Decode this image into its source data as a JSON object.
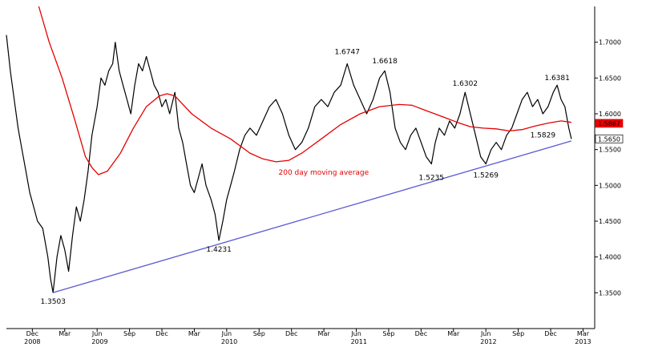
{
  "chart_data": {
    "type": "line",
    "title": "",
    "xlabel": "",
    "ylabel": "",
    "ylim": [
      1.3,
      1.75
    ],
    "y_ticks": [
      "1.3500",
      "1.4000",
      "1.4500",
      "1.5000",
      "1.5500",
      "1.6000",
      "1.6500",
      "1.7000"
    ],
    "x_ticks": [
      {
        "label": "Dec",
        "t": 2008.92
      },
      {
        "label": "Mar",
        "t": 2009.17
      },
      {
        "label": "Jun",
        "t": 2009.42
      },
      {
        "label": "Sep",
        "t": 2009.67
      },
      {
        "label": "Dec",
        "t": 2009.92
      },
      {
        "label": "Mar",
        "t": 2010.17
      },
      {
        "label": "Jun",
        "t": 2010.42
      },
      {
        "label": "Sep",
        "t": 2010.67
      },
      {
        "label": "Dec",
        "t": 2010.92
      },
      {
        "label": "Mar",
        "t": 2011.17
      },
      {
        "label": "Jun",
        "t": 2011.42
      },
      {
        "label": "Sep",
        "t": 2011.67
      },
      {
        "label": "Dec",
        "t": 2011.92
      },
      {
        "label": "Mar",
        "t": 2012.17
      },
      {
        "label": "Jun",
        "t": 2012.42
      },
      {
        "label": "Sep",
        "t": 2012.67
      },
      {
        "label": "Dec",
        "t": 2012.92
      },
      {
        "label": "Mar",
        "t": 2013.17
      }
    ],
    "year_labels": [
      {
        "label": "2008",
        "t": 2008.92
      },
      {
        "label": "2009",
        "t": 2009.44
      },
      {
        "label": "2010",
        "t": 2010.44
      },
      {
        "label": "2011",
        "t": 2011.44
      },
      {
        "label": "2012",
        "t": 2012.44
      },
      {
        "label": "2013",
        "t": 2013.17
      }
    ],
    "series": [
      {
        "color": "#000000",
        "points": [
          [
            2008.72,
            1.71
          ],
          [
            2008.75,
            1.66
          ],
          [
            2008.78,
            1.62
          ],
          [
            2008.81,
            1.58
          ],
          [
            2008.84,
            1.55
          ],
          [
            2008.87,
            1.52
          ],
          [
            2008.9,
            1.49
          ],
          [
            2008.93,
            1.47
          ],
          [
            2008.96,
            1.45
          ],
          [
            2009.0,
            1.44
          ],
          [
            2009.04,
            1.4
          ],
          [
            2009.06,
            1.37
          ],
          [
            2009.08,
            1.3503
          ],
          [
            2009.11,
            1.4
          ],
          [
            2009.14,
            1.43
          ],
          [
            2009.17,
            1.41
          ],
          [
            2009.2,
            1.38
          ],
          [
            2009.23,
            1.43
          ],
          [
            2009.26,
            1.47
          ],
          [
            2009.29,
            1.45
          ],
          [
            2009.32,
            1.48
          ],
          [
            2009.35,
            1.52
          ],
          [
            2009.38,
            1.57
          ],
          [
            2009.42,
            1.61
          ],
          [
            2009.45,
            1.65
          ],
          [
            2009.48,
            1.64
          ],
          [
            2009.51,
            1.66
          ],
          [
            2009.54,
            1.67
          ],
          [
            2009.56,
            1.7
          ],
          [
            2009.59,
            1.66
          ],
          [
            2009.62,
            1.64
          ],
          [
            2009.65,
            1.62
          ],
          [
            2009.68,
            1.6
          ],
          [
            2009.71,
            1.64
          ],
          [
            2009.74,
            1.67
          ],
          [
            2009.77,
            1.66
          ],
          [
            2009.8,
            1.68
          ],
          [
            2009.83,
            1.66
          ],
          [
            2009.86,
            1.64
          ],
          [
            2009.89,
            1.63
          ],
          [
            2009.92,
            1.61
          ],
          [
            2009.95,
            1.62
          ],
          [
            2009.98,
            1.6
          ],
          [
            2010.02,
            1.63
          ],
          [
            2010.05,
            1.58
          ],
          [
            2010.08,
            1.56
          ],
          [
            2010.11,
            1.53
          ],
          [
            2010.14,
            1.5
          ],
          [
            2010.17,
            1.49
          ],
          [
            2010.2,
            1.51
          ],
          [
            2010.23,
            1.53
          ],
          [
            2010.26,
            1.5
          ],
          [
            2010.3,
            1.48
          ],
          [
            2010.33,
            1.46
          ],
          [
            2010.36,
            1.4231
          ],
          [
            2010.39,
            1.45
          ],
          [
            2010.42,
            1.48
          ],
          [
            2010.45,
            1.5
          ],
          [
            2010.48,
            1.52
          ],
          [
            2010.52,
            1.55
          ],
          [
            2010.56,
            1.57
          ],
          [
            2010.6,
            1.58
          ],
          [
            2010.65,
            1.57
          ],
          [
            2010.7,
            1.59
          ],
          [
            2010.75,
            1.61
          ],
          [
            2010.8,
            1.62
          ],
          [
            2010.85,
            1.6
          ],
          [
            2010.9,
            1.57
          ],
          [
            2010.95,
            1.55
          ],
          [
            2011.0,
            1.56
          ],
          [
            2011.05,
            1.58
          ],
          [
            2011.1,
            1.61
          ],
          [
            2011.15,
            1.62
          ],
          [
            2011.2,
            1.61
          ],
          [
            2011.25,
            1.63
          ],
          [
            2011.3,
            1.64
          ],
          [
            2011.35,
            1.67
          ],
          [
            2011.4,
            1.64
          ],
          [
            2011.45,
            1.62
          ],
          [
            2011.5,
            1.6
          ],
          [
            2011.55,
            1.62
          ],
          [
            2011.6,
            1.65
          ],
          [
            2011.64,
            1.66
          ],
          [
            2011.68,
            1.63
          ],
          [
            2011.72,
            1.58
          ],
          [
            2011.76,
            1.56
          ],
          [
            2011.8,
            1.55
          ],
          [
            2011.84,
            1.57
          ],
          [
            2011.88,
            1.58
          ],
          [
            2011.92,
            1.56
          ],
          [
            2011.96,
            1.54
          ],
          [
            2012.0,
            1.53
          ],
          [
            2012.03,
            1.56
          ],
          [
            2012.06,
            1.58
          ],
          [
            2012.1,
            1.57
          ],
          [
            2012.14,
            1.59
          ],
          [
            2012.18,
            1.58
          ],
          [
            2012.22,
            1.6
          ],
          [
            2012.26,
            1.63
          ],
          [
            2012.3,
            1.6
          ],
          [
            2012.34,
            1.57
          ],
          [
            2012.38,
            1.54
          ],
          [
            2012.42,
            1.53
          ],
          [
            2012.46,
            1.55
          ],
          [
            2012.5,
            1.56
          ],
          [
            2012.54,
            1.55
          ],
          [
            2012.58,
            1.57
          ],
          [
            2012.62,
            1.58
          ],
          [
            2012.66,
            1.6
          ],
          [
            2012.7,
            1.62
          ],
          [
            2012.74,
            1.63
          ],
          [
            2012.78,
            1.61
          ],
          [
            2012.82,
            1.62
          ],
          [
            2012.86,
            1.6
          ],
          [
            2012.9,
            1.61
          ],
          [
            2012.94,
            1.63
          ],
          [
            2012.97,
            1.64
          ],
          [
            2013.0,
            1.62
          ],
          [
            2013.03,
            1.61
          ],
          [
            2013.06,
            1.58
          ],
          [
            2013.08,
            1.565
          ]
        ]
      },
      {
        "name": "200 day moving average",
        "color": "#e60000",
        "points": [
          [
            2008.97,
            1.75
          ],
          [
            2009.05,
            1.7
          ],
          [
            2009.15,
            1.65
          ],
          [
            2009.25,
            1.59
          ],
          [
            2009.33,
            1.54
          ],
          [
            2009.38,
            1.525
          ],
          [
            2009.43,
            1.515
          ],
          [
            2009.5,
            1.52
          ],
          [
            2009.6,
            1.545
          ],
          [
            2009.7,
            1.58
          ],
          [
            2009.8,
            1.61
          ],
          [
            2009.9,
            1.625
          ],
          [
            2009.96,
            1.628
          ],
          [
            2010.02,
            1.625
          ],
          [
            2010.15,
            1.6
          ],
          [
            2010.3,
            1.58
          ],
          [
            2010.45,
            1.565
          ],
          [
            2010.6,
            1.545
          ],
          [
            2010.7,
            1.537
          ],
          [
            2010.8,
            1.533
          ],
          [
            2010.9,
            1.535
          ],
          [
            2011.0,
            1.545
          ],
          [
            2011.15,
            1.565
          ],
          [
            2011.3,
            1.585
          ],
          [
            2011.45,
            1.6
          ],
          [
            2011.6,
            1.61
          ],
          [
            2011.75,
            1.613
          ],
          [
            2011.85,
            1.612
          ],
          [
            2011.95,
            1.605
          ],
          [
            2012.1,
            1.595
          ],
          [
            2012.2,
            1.588
          ],
          [
            2012.3,
            1.582
          ],
          [
            2012.4,
            1.58
          ],
          [
            2012.5,
            1.579
          ],
          [
            2012.6,
            1.576
          ],
          [
            2012.7,
            1.578
          ],
          [
            2012.8,
            1.583
          ],
          [
            2012.9,
            1.587
          ],
          [
            2013.0,
            1.59
          ],
          [
            2013.08,
            1.588
          ]
        ]
      },
      {
        "color": "#5a5ad6",
        "points": [
          [
            2009.08,
            1.3503
          ],
          [
            2013.08,
            1.562
          ]
        ]
      }
    ],
    "annotations": [
      {
        "text": "1.3503",
        "x": 2009.08,
        "y": 1.3503,
        "pos": "below"
      },
      {
        "text": "1.4231",
        "x": 2010.36,
        "y": 1.4231,
        "pos": "below"
      },
      {
        "text": "1.6747",
        "x": 2011.35,
        "y": 1.6747,
        "pos": "above"
      },
      {
        "text": "1.6618",
        "x": 2011.64,
        "y": 1.6618,
        "pos": "above"
      },
      {
        "text": "1.5235",
        "x": 2012.0,
        "y": 1.5235,
        "pos": "below"
      },
      {
        "text": "1.6302",
        "x": 2012.26,
        "y": 1.6302,
        "pos": "above"
      },
      {
        "text": "1.5269",
        "x": 2012.42,
        "y": 1.5269,
        "pos": "below"
      },
      {
        "text": "1.5829",
        "x": 2012.86,
        "y": 1.5829,
        "pos": "below"
      },
      {
        "text": "1.6381",
        "x": 2012.97,
        "y": 1.6381,
        "pos": "above"
      }
    ],
    "ma_label": {
      "text": "200 day moving average",
      "x": 2010.82,
      "y": 1.515
    },
    "last_values": [
      {
        "text": "1.5867",
        "y": 1.5867,
        "style": "red-box"
      },
      {
        "text": "1.5650",
        "y": 1.565,
        "style": "plain-box"
      }
    ]
  }
}
